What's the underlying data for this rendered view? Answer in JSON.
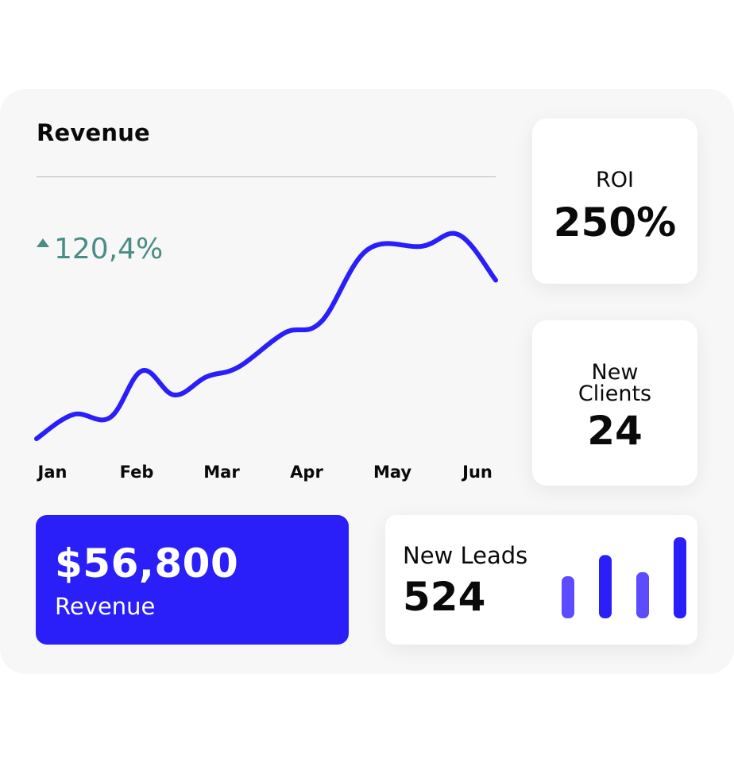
{
  "revenue_chart": {
    "title": "Revenue",
    "growth": "120,4%",
    "line_color": "#2a1ff8",
    "growth_color": "#4a8c86"
  },
  "chart_data": [
    {
      "type": "line",
      "title": "Revenue",
      "categories": [
        "Jan",
        "Feb",
        "Mar",
        "Apr",
        "May",
        "Jun"
      ],
      "series": [
        {
          "x": [
            0,
            0.4,
            0.8,
            1.15,
            1.5,
            1.85,
            2.2,
            2.7,
            3.1,
            3.6,
            4.2,
            4.6,
            5.0
          ],
          "values": [
            0,
            0.32,
            0.28,
            0.9,
            0.58,
            0.82,
            0.95,
            1.4,
            1.55,
            2.5,
            2.55,
            2.7,
            2.1
          ]
        }
      ],
      "grid": false,
      "legend": "none"
    },
    {
      "type": "bar",
      "title": "",
      "categories": [
        "",
        "",
        "",
        ""
      ],
      "values": [
        0.52,
        0.78,
        0.57,
        1.0
      ],
      "ylim": [
        0,
        1
      ],
      "colors": [
        "#5d4cff",
        "#2a1ff8",
        "#5d4cff",
        "#2a1ff8"
      ]
    }
  ],
  "roi_card": {
    "label": "ROI",
    "value": "250%"
  },
  "clients_card": {
    "label_line1": "New",
    "label_line2": "Clients",
    "value": "24"
  },
  "revenue_card": {
    "amount": "$56,800",
    "label": "Revenue",
    "background": "#2a1ff8"
  },
  "leads_card": {
    "label": "New Leads",
    "value": "524"
  }
}
